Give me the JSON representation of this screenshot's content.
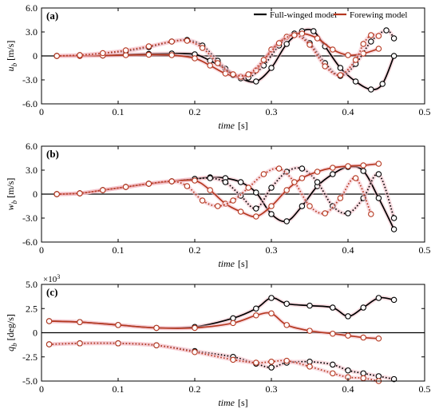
{
  "figure": {
    "time_label": "time",
    "time_unit": "[s]"
  },
  "colors": {
    "black": "#000000",
    "red": "#b5371f",
    "halo": "#f4c0c8",
    "zero": "#000000"
  },
  "legend": {
    "placement": "top-right",
    "entries": [
      {
        "label": "Full-winged model",
        "color": "#000000"
      },
      {
        "label": "Forewing model",
        "color": "#b5371f"
      }
    ]
  },
  "chart_data": [
    {
      "type": "line",
      "panel": "(a)",
      "ylabel": "u",
      "ylabel_sub": "b",
      "ylabel_unit": "[m/s]",
      "xlim": [
        0,
        0.5
      ],
      "ylim": [
        -6,
        6
      ],
      "xticks": [
        0,
        0.1,
        0.2,
        0.3,
        0.4,
        0.5
      ],
      "yticks": [
        -6,
        -3,
        0,
        3,
        6
      ],
      "xtick_labels": [
        "0",
        "0.1",
        "0.2",
        "0.3",
        "0.4",
        "0.5"
      ],
      "ytick_labels": [
        "-6.0",
        "-3.0",
        "0",
        "3.0",
        "6.0"
      ],
      "series": [
        {
          "color": "black",
          "dash": "solid",
          "x": [
            0.02,
            0.05,
            0.08,
            0.11,
            0.14,
            0.17,
            0.2,
            0.22,
            0.24,
            0.26,
            0.28,
            0.3,
            0.32,
            0.34,
            0.355,
            0.37,
            0.39,
            0.41,
            0.43,
            0.445,
            0.46
          ],
          "y": [
            0,
            0,
            0.05,
            0.15,
            0.25,
            0.3,
            0.2,
            -0.6,
            -1.6,
            -2.8,
            -3.2,
            -1.5,
            1.5,
            3.1,
            3.1,
            1.2,
            -1.5,
            -3.2,
            -4.2,
            -3.5,
            0
          ]
        },
        {
          "color": "black",
          "dash": "dotted",
          "x": [
            0.02,
            0.05,
            0.08,
            0.11,
            0.14,
            0.17,
            0.19,
            0.21,
            0.23,
            0.25,
            0.27,
            0.29,
            0.31,
            0.33,
            0.35,
            0.37,
            0.39,
            0.41,
            0.43,
            0.45,
            0.46
          ],
          "y": [
            0,
            0.1,
            0.3,
            0.6,
            1.1,
            1.8,
            2.0,
            1.3,
            -0.6,
            -2.4,
            -2.7,
            -1.2,
            1.3,
            2.8,
            1.6,
            -0.9,
            -2.5,
            -1.0,
            1.8,
            3.2,
            2.2
          ]
        },
        {
          "color": "red",
          "dash": "solid",
          "x": [
            0.02,
            0.05,
            0.08,
            0.11,
            0.14,
            0.17,
            0.2,
            0.22,
            0.24,
            0.26,
            0.28,
            0.3,
            0.32,
            0.34,
            0.36,
            0.38,
            0.4,
            0.42,
            0.44
          ],
          "y": [
            0,
            0,
            0.05,
            0.1,
            0.15,
            0.1,
            -0.3,
            -1.2,
            -2.2,
            -2.6,
            -1.8,
            0.8,
            2.4,
            2.8,
            2.2,
            0.8,
            0.1,
            0.3,
            0.9
          ]
        },
        {
          "color": "red",
          "dash": "dotted",
          "x": [
            0.02,
            0.05,
            0.08,
            0.11,
            0.14,
            0.17,
            0.19,
            0.21,
            0.23,
            0.25,
            0.27,
            0.29,
            0.31,
            0.33,
            0.35,
            0.37,
            0.39,
            0.41,
            0.42,
            0.43,
            0.44
          ],
          "y": [
            0,
            0.1,
            0.35,
            0.7,
            1.2,
            1.8,
            1.9,
            1.0,
            -0.9,
            -2.3,
            -2.3,
            -0.5,
            1.6,
            2.6,
            1.4,
            -1.3,
            -2.4,
            -0.5,
            1.5,
            2.6,
            2.5
          ]
        }
      ]
    },
    {
      "type": "line",
      "panel": "(b)",
      "ylabel": "w",
      "ylabel_sub": "b",
      "ylabel_unit": "[m/s]",
      "xlim": [
        0,
        0.5
      ],
      "ylim": [
        -6,
        6
      ],
      "xticks": [
        0,
        0.1,
        0.2,
        0.3,
        0.4,
        0.5
      ],
      "yticks": [
        -6,
        -3,
        0,
        3,
        6
      ],
      "xtick_labels": [
        "0",
        "0.1",
        "0.2",
        "0.3",
        "0.4",
        "0.5"
      ],
      "ytick_labels": [
        "-6.0",
        "-3.0",
        "0",
        "3.0",
        "6.0"
      ],
      "series": [
        {
          "color": "black",
          "dash": "solid",
          "x": [
            0.02,
            0.05,
            0.08,
            0.11,
            0.14,
            0.17,
            0.2,
            0.22,
            0.24,
            0.26,
            0.28,
            0.3,
            0.32,
            0.34,
            0.36,
            0.38,
            0.4,
            0.42,
            0.44,
            0.46
          ],
          "y": [
            0,
            0.1,
            0.5,
            0.9,
            1.3,
            1.6,
            1.9,
            2.1,
            2.0,
            1.5,
            0.2,
            -2.5,
            -3.4,
            -1.5,
            1.0,
            2.5,
            3.4,
            2.9,
            -0.5,
            -4.4
          ]
        },
        {
          "color": "black",
          "dash": "dotted",
          "x": [
            0.02,
            0.05,
            0.08,
            0.11,
            0.14,
            0.17,
            0.2,
            0.22,
            0.24,
            0.26,
            0.28,
            0.3,
            0.32,
            0.34,
            0.36,
            0.38,
            0.4,
            0.42,
            0.44,
            0.46
          ],
          "y": [
            0,
            0.1,
            0.5,
            0.9,
            1.3,
            1.6,
            1.9,
            2.0,
            1.5,
            -0.2,
            -1.8,
            0.8,
            2.8,
            3.2,
            1.5,
            -1.5,
            -2.4,
            -0.5,
            2.5,
            -3.0
          ]
        },
        {
          "color": "red",
          "dash": "solid",
          "x": [
            0.02,
            0.05,
            0.08,
            0.11,
            0.14,
            0.17,
            0.2,
            0.22,
            0.24,
            0.26,
            0.28,
            0.3,
            0.32,
            0.34,
            0.36,
            0.38,
            0.4,
            0.42,
            0.44
          ],
          "y": [
            0,
            0.1,
            0.5,
            0.9,
            1.3,
            1.6,
            1.7,
            0.5,
            -1.2,
            -2.2,
            -2.8,
            -1.5,
            0.5,
            2.0,
            2.8,
            3.3,
            3.5,
            3.6,
            3.8
          ]
        },
        {
          "color": "red",
          "dash": "dotted",
          "x": [
            0.02,
            0.05,
            0.08,
            0.11,
            0.14,
            0.17,
            0.19,
            0.21,
            0.23,
            0.25,
            0.27,
            0.29,
            0.31,
            0.33,
            0.35,
            0.37,
            0.39,
            0.41,
            0.43
          ],
          "y": [
            0,
            0.1,
            0.5,
            0.9,
            1.3,
            1.6,
            1.0,
            -0.8,
            -1.5,
            -0.8,
            0.8,
            2.5,
            3.2,
            1.5,
            -1.5,
            -2.4,
            -0.5,
            2.0,
            -2.5
          ]
        }
      ]
    },
    {
      "type": "line",
      "panel": "(c)",
      "ylabel": "q",
      "ylabel_sub": "b",
      "ylabel_unit": "[deg/s]",
      "scale_label": "×10",
      "scale_exp": "3",
      "xlim": [
        0,
        0.5
      ],
      "ylim": [
        -5,
        5
      ],
      "xticks": [
        0,
        0.1,
        0.2,
        0.3,
        0.4,
        0.5
      ],
      "yticks": [
        -5,
        -2.5,
        0,
        2.5,
        5
      ],
      "xtick_labels": [
        "0",
        "0.1",
        "0.2",
        "0.3",
        "0.4",
        "0.5"
      ],
      "ytick_labels": [
        "-5.0",
        "-2.5",
        "0",
        "2.5",
        "5.0"
      ],
      "series": [
        {
          "color": "black",
          "dash": "solid",
          "x": [
            0.01,
            0.05,
            0.1,
            0.15,
            0.2,
            0.25,
            0.28,
            0.3,
            0.32,
            0.35,
            0.38,
            0.4,
            0.42,
            0.44,
            0.46
          ],
          "y": [
            1.2,
            1.1,
            0.8,
            0.5,
            0.6,
            1.5,
            2.5,
            3.6,
            3.0,
            2.8,
            2.6,
            1.7,
            2.6,
            3.6,
            3.4
          ]
        },
        {
          "color": "black",
          "dash": "dotted",
          "x": [
            0.01,
            0.05,
            0.1,
            0.15,
            0.2,
            0.25,
            0.28,
            0.3,
            0.32,
            0.35,
            0.38,
            0.4,
            0.42,
            0.44,
            0.46
          ],
          "y": [
            -1.2,
            -1.1,
            -1.1,
            -1.3,
            -1.9,
            -2.5,
            -3.2,
            -3.6,
            -3.1,
            -3.0,
            -3.3,
            -3.9,
            -4.2,
            -4.5,
            -4.8
          ]
        },
        {
          "color": "red",
          "dash": "solid",
          "x": [
            0.01,
            0.05,
            0.1,
            0.15,
            0.2,
            0.25,
            0.28,
            0.3,
            0.32,
            0.35,
            0.38,
            0.4,
            0.42,
            0.44
          ],
          "y": [
            1.2,
            1.1,
            0.8,
            0.5,
            0.5,
            1.0,
            1.8,
            2.0,
            0.8,
            0.2,
            -0.1,
            -0.3,
            -0.5,
            -0.6
          ]
        },
        {
          "color": "red",
          "dash": "dotted",
          "x": [
            0.01,
            0.05,
            0.1,
            0.15,
            0.2,
            0.25,
            0.28,
            0.3,
            0.32,
            0.35,
            0.38,
            0.4,
            0.42,
            0.44
          ],
          "y": [
            -1.2,
            -1.1,
            -1.1,
            -1.3,
            -2.0,
            -2.8,
            -3.1,
            -3.0,
            -2.9,
            -3.5,
            -4.2,
            -4.6,
            -4.7,
            -5.0
          ]
        }
      ]
    }
  ]
}
